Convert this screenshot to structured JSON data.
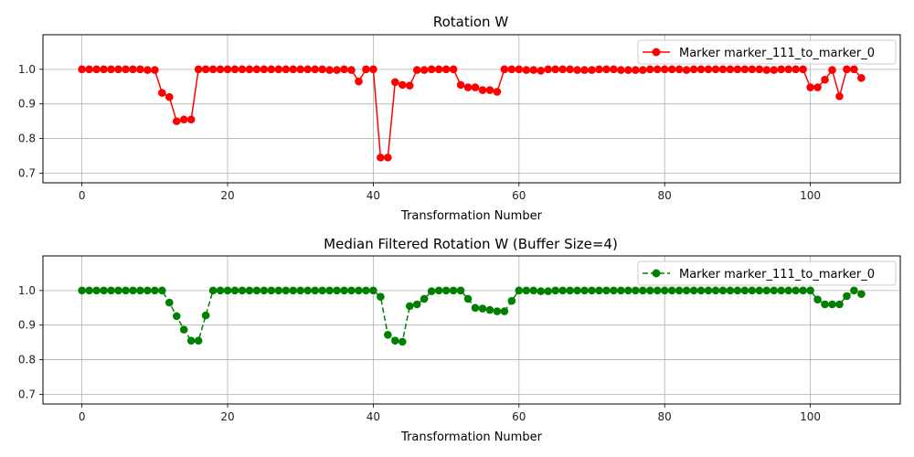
{
  "chart_data": [
    {
      "type": "line",
      "title": "Rotation W",
      "xlabel": "Transformation Number",
      "ylabel": "",
      "xlim": [
        -5.35,
        112.35
      ],
      "ylim": [
        0.672,
        1.1
      ],
      "xticks": [
        0,
        20,
        40,
        60,
        80,
        100
      ],
      "yticks": [
        0.7,
        0.8,
        0.9,
        1.0
      ],
      "grid": true,
      "legend": "top-right",
      "series": [
        {
          "name": "Marker marker_111_to_marker_0",
          "color": "#ff0000",
          "linestyle": "solid",
          "marker": "circle",
          "x": [
            0,
            1,
            2,
            3,
            4,
            5,
            6,
            7,
            8,
            9,
            10,
            11,
            12,
            13,
            14,
            15,
            16,
            17,
            18,
            19,
            20,
            21,
            22,
            23,
            24,
            25,
            26,
            27,
            28,
            29,
            30,
            31,
            32,
            33,
            34,
            35,
            36,
            37,
            38,
            39,
            40,
            41,
            42,
            43,
            44,
            45,
            46,
            47,
            48,
            49,
            50,
            51,
            52,
            53,
            54,
            55,
            56,
            57,
            58,
            59,
            60,
            61,
            62,
            63,
            64,
            65,
            66,
            67,
            68,
            69,
            70,
            71,
            72,
            73,
            74,
            75,
            76,
            77,
            78,
            79,
            80,
            81,
            82,
            83,
            84,
            85,
            86,
            87,
            88,
            89,
            90,
            91,
            92,
            93,
            94,
            95,
            96,
            97,
            98,
            99,
            100,
            101,
            102,
            103,
            104,
            105,
            106,
            107
          ],
          "y": [
            1.0,
            1.0,
            1.0,
            1.0,
            1.0,
            1.0,
            1.0,
            1.0,
            1.0,
            0.998,
            0.998,
            0.932,
            0.92,
            0.85,
            0.855,
            0.855,
            1.0,
            1.0,
            1.0,
            1.0,
            1.0,
            1.0,
            1.0,
            1.0,
            1.0,
            1.0,
            1.0,
            1.0,
            1.0,
            1.0,
            1.0,
            1.0,
            1.0,
            1.0,
            0.998,
            0.998,
            1.0,
            0.998,
            0.965,
            1.0,
            1.0,
            0.745,
            0.745,
            0.963,
            0.955,
            0.953,
            0.998,
            0.998,
            1.0,
            1.0,
            1.0,
            1.0,
            0.955,
            0.948,
            0.948,
            0.94,
            0.94,
            0.935,
            1.0,
            1.0,
            1.0,
            0.998,
            0.998,
            0.996,
            1.0,
            1.0,
            1.0,
            1.0,
            0.998,
            0.998,
            0.998,
            1.0,
            1.0,
            1.0,
            0.998,
            0.998,
            0.998,
            0.998,
            1.0,
            1.0,
            1.0,
            1.0,
            1.0,
            0.998,
            1.0,
            1.0,
            1.0,
            1.0,
            1.0,
            1.0,
            1.0,
            1.0,
            1.0,
            1.0,
            0.998,
            0.998,
            1.0,
            1.0,
            1.0,
            1.0,
            0.948,
            0.948,
            0.97,
            0.998,
            0.922,
            1.0,
            1.0,
            0.975
          ]
        }
      ]
    },
    {
      "type": "line",
      "title": "Median Filtered Rotation W (Buffer Size=4)",
      "xlabel": "Transformation Number",
      "ylabel": "",
      "xlim": [
        -5.35,
        112.35
      ],
      "ylim": [
        0.672,
        1.1
      ],
      "xticks": [
        0,
        20,
        40,
        60,
        80,
        100
      ],
      "yticks": [
        0.7,
        0.8,
        0.9,
        1.0
      ],
      "grid": true,
      "legend": "top-right",
      "series": [
        {
          "name": "Marker marker_111_to_marker_0",
          "color": "#008000",
          "linestyle": "dashed",
          "marker": "circle",
          "x": [
            0,
            1,
            2,
            3,
            4,
            5,
            6,
            7,
            8,
            9,
            10,
            11,
            12,
            13,
            14,
            15,
            16,
            17,
            18,
            19,
            20,
            21,
            22,
            23,
            24,
            25,
            26,
            27,
            28,
            29,
            30,
            31,
            32,
            33,
            34,
            35,
            36,
            37,
            38,
            39,
            40,
            41,
            42,
            43,
            44,
            45,
            46,
            47,
            48,
            49,
            50,
            51,
            52,
            53,
            54,
            55,
            56,
            57,
            58,
            59,
            60,
            61,
            62,
            63,
            64,
            65,
            66,
            67,
            68,
            69,
            70,
            71,
            72,
            73,
            74,
            75,
            76,
            77,
            78,
            79,
            80,
            81,
            82,
            83,
            84,
            85,
            86,
            87,
            88,
            89,
            90,
            91,
            92,
            93,
            94,
            95,
            96,
            97,
            98,
            99,
            100,
            101,
            102,
            103,
            104,
            105,
            106,
            107
          ],
          "y": [
            1.0,
            1.0,
            1.0,
            1.0,
            1.0,
            1.0,
            1.0,
            1.0,
            1.0,
            1.0,
            1.0,
            1.0,
            0.965,
            0.926,
            0.887,
            0.855,
            0.855,
            0.928,
            1.0,
            1.0,
            1.0,
            1.0,
            1.0,
            1.0,
            1.0,
            1.0,
            1.0,
            1.0,
            1.0,
            1.0,
            1.0,
            1.0,
            1.0,
            1.0,
            1.0,
            1.0,
            1.0,
            1.0,
            1.0,
            1.0,
            1.0,
            0.982,
            0.872,
            0.855,
            0.852,
            0.955,
            0.96,
            0.976,
            0.998,
            1.0,
            1.0,
            1.0,
            1.0,
            0.976,
            0.95,
            0.948,
            0.944,
            0.94,
            0.94,
            0.97,
            1.0,
            1.0,
            1.0,
            0.998,
            0.998,
            1.0,
            1.0,
            1.0,
            1.0,
            1.0,
            1.0,
            1.0,
            1.0,
            1.0,
            1.0,
            1.0,
            1.0,
            1.0,
            1.0,
            1.0,
            1.0,
            1.0,
            1.0,
            1.0,
            1.0,
            1.0,
            1.0,
            1.0,
            1.0,
            1.0,
            1.0,
            1.0,
            1.0,
            1.0,
            1.0,
            1.0,
            1.0,
            1.0,
            1.0,
            1.0,
            1.0,
            0.974,
            0.96,
            0.96,
            0.96,
            0.984,
            1.0,
            0.99
          ]
        }
      ]
    }
  ]
}
